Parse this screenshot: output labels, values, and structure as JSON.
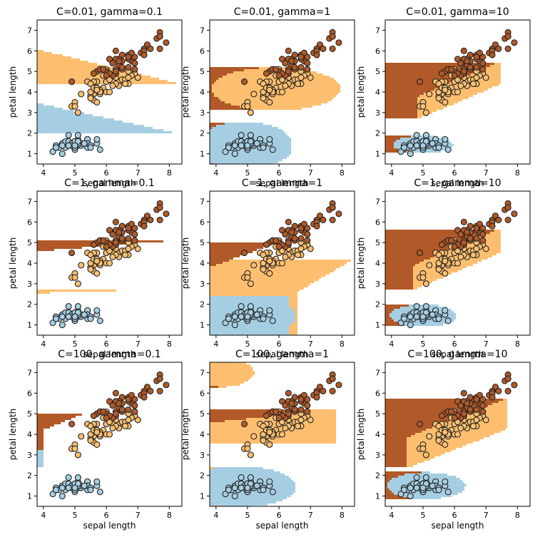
{
  "chart_data": {
    "type": "scatter",
    "description_of_regions": "SVM RBF decision regions (three classes) over sepal length vs petal length",
    "xlabel": "sepal length",
    "ylabel": "petal length",
    "xlim": [
      3.8,
      8.4
    ],
    "ylim": [
      0.5,
      7.5
    ],
    "xticks": [
      4,
      5,
      6,
      7,
      8
    ],
    "yticks": [
      1,
      2,
      3,
      4,
      5,
      6,
      7
    ],
    "colors": {
      "class0": "#a6cee3",
      "class1": "#fdbf6f",
      "class2": "#b15928",
      "edge": "#222222"
    },
    "panels": [
      {
        "title": "C=0.01, gamma=0.1",
        "C": 0.01,
        "gamma": 0.1
      },
      {
        "title": "C=0.01, gamma=1",
        "C": 0.01,
        "gamma": 1
      },
      {
        "title": "C=0.01, gamma=10",
        "C": 0.01,
        "gamma": 10
      },
      {
        "title": "C=1, gamma=0.1",
        "C": 1,
        "gamma": 0.1
      },
      {
        "title": "C=1, gamma=1",
        "C": 1,
        "gamma": 1
      },
      {
        "title": "C=1, gamma=10",
        "C": 1,
        "gamma": 10
      },
      {
        "title": "C=100, gamma=0.1",
        "C": 100,
        "gamma": 0.1
      },
      {
        "title": "C=100, gamma=1",
        "C": 100,
        "gamma": 1
      },
      {
        "title": "C=100, gamma=10",
        "C": 100,
        "gamma": 10
      }
    ],
    "points": {
      "setosa": [
        [
          5.1,
          1.4
        ],
        [
          4.9,
          1.4
        ],
        [
          4.7,
          1.3
        ],
        [
          4.6,
          1.5
        ],
        [
          5.0,
          1.4
        ],
        [
          5.4,
          1.7
        ],
        [
          4.6,
          1.4
        ],
        [
          5.0,
          1.5
        ],
        [
          4.4,
          1.4
        ],
        [
          4.9,
          1.5
        ],
        [
          5.4,
          1.5
        ],
        [
          4.8,
          1.6
        ],
        [
          4.8,
          1.4
        ],
        [
          4.3,
          1.1
        ],
        [
          5.8,
          1.2
        ],
        [
          5.7,
          1.5
        ],
        [
          5.4,
          1.3
        ],
        [
          5.1,
          1.4
        ],
        [
          5.7,
          1.7
        ],
        [
          5.1,
          1.5
        ],
        [
          5.4,
          1.7
        ],
        [
          5.1,
          1.5
        ],
        [
          4.6,
          1.0
        ],
        [
          5.1,
          1.7
        ],
        [
          4.8,
          1.9
        ],
        [
          5.0,
          1.6
        ],
        [
          5.0,
          1.6
        ],
        [
          5.2,
          1.5
        ],
        [
          5.2,
          1.4
        ],
        [
          4.7,
          1.6
        ],
        [
          4.8,
          1.6
        ],
        [
          5.4,
          1.5
        ],
        [
          5.2,
          1.5
        ],
        [
          5.5,
          1.4
        ],
        [
          4.9,
          1.5
        ],
        [
          5.0,
          1.2
        ],
        [
          5.5,
          1.3
        ],
        [
          4.9,
          1.4
        ],
        [
          4.4,
          1.3
        ],
        [
          5.1,
          1.5
        ],
        [
          5.0,
          1.3
        ],
        [
          4.5,
          1.3
        ],
        [
          4.4,
          1.3
        ],
        [
          5.0,
          1.6
        ],
        [
          5.1,
          1.9
        ],
        [
          4.8,
          1.4
        ],
        [
          5.1,
          1.6
        ],
        [
          4.6,
          1.4
        ],
        [
          5.3,
          1.5
        ],
        [
          5.0,
          1.4
        ]
      ],
      "versicolor": [
        [
          7.0,
          4.7
        ],
        [
          6.4,
          4.5
        ],
        [
          6.9,
          4.9
        ],
        [
          5.5,
          4.0
        ],
        [
          6.5,
          4.6
        ],
        [
          5.7,
          4.5
        ],
        [
          6.3,
          4.7
        ],
        [
          4.9,
          3.3
        ],
        [
          6.6,
          4.6
        ],
        [
          5.2,
          3.9
        ],
        [
          5.0,
          3.5
        ],
        [
          5.9,
          4.2
        ],
        [
          6.0,
          4.0
        ],
        [
          6.1,
          4.7
        ],
        [
          5.6,
          3.6
        ],
        [
          6.7,
          4.4
        ],
        [
          5.6,
          4.5
        ],
        [
          5.8,
          4.1
        ],
        [
          6.2,
          4.5
        ],
        [
          5.6,
          3.9
        ],
        [
          5.9,
          4.8
        ],
        [
          6.1,
          4.0
        ],
        [
          6.3,
          4.9
        ],
        [
          6.1,
          4.7
        ],
        [
          6.4,
          4.3
        ],
        [
          6.6,
          4.4
        ],
        [
          6.8,
          4.8
        ],
        [
          6.7,
          5.0
        ],
        [
          6.0,
          4.5
        ],
        [
          5.7,
          3.5
        ],
        [
          5.5,
          3.8
        ],
        [
          5.5,
          3.7
        ],
        [
          5.8,
          3.9
        ],
        [
          6.0,
          5.1
        ],
        [
          5.4,
          4.5
        ],
        [
          6.0,
          4.5
        ],
        [
          6.7,
          4.7
        ],
        [
          6.3,
          4.4
        ],
        [
          5.6,
          4.1
        ],
        [
          5.5,
          4.0
        ],
        [
          5.5,
          4.4
        ],
        [
          6.1,
          4.6
        ],
        [
          5.8,
          4.0
        ],
        [
          5.0,
          3.3
        ],
        [
          5.6,
          4.2
        ],
        [
          5.7,
          4.2
        ],
        [
          5.7,
          4.2
        ],
        [
          6.2,
          4.3
        ],
        [
          5.1,
          3.0
        ],
        [
          5.7,
          4.1
        ]
      ],
      "virginica": [
        [
          6.3,
          6.0
        ],
        [
          5.8,
          5.1
        ],
        [
          7.1,
          5.9
        ],
        [
          6.3,
          5.6
        ],
        [
          6.5,
          5.8
        ],
        [
          7.6,
          6.6
        ],
        [
          4.9,
          4.5
        ],
        [
          7.3,
          6.3
        ],
        [
          6.7,
          5.8
        ],
        [
          7.2,
          6.1
        ],
        [
          6.5,
          5.1
        ],
        [
          6.4,
          5.3
        ],
        [
          6.8,
          5.5
        ],
        [
          5.7,
          5.0
        ],
        [
          5.8,
          5.1
        ],
        [
          6.4,
          5.3
        ],
        [
          6.5,
          5.5
        ],
        [
          7.7,
          6.7
        ],
        [
          7.7,
          6.9
        ],
        [
          6.0,
          5.0
        ],
        [
          6.9,
          5.7
        ],
        [
          5.6,
          4.9
        ],
        [
          7.7,
          6.7
        ],
        [
          6.3,
          4.9
        ],
        [
          6.7,
          5.7
        ],
        [
          7.2,
          6.0
        ],
        [
          6.2,
          4.8
        ],
        [
          6.1,
          4.9
        ],
        [
          6.4,
          5.6
        ],
        [
          7.2,
          5.8
        ],
        [
          7.4,
          6.1
        ],
        [
          7.9,
          6.4
        ],
        [
          6.4,
          5.6
        ],
        [
          6.3,
          5.1
        ],
        [
          6.1,
          5.6
        ],
        [
          7.7,
          6.1
        ],
        [
          6.3,
          5.6
        ],
        [
          6.4,
          5.5
        ],
        [
          6.0,
          4.8
        ],
        [
          6.9,
          5.4
        ],
        [
          6.7,
          5.6
        ],
        [
          6.9,
          5.1
        ],
        [
          5.8,
          5.1
        ],
        [
          6.8,
          5.9
        ],
        [
          6.7,
          5.7
        ],
        [
          6.7,
          5.2
        ],
        [
          6.3,
          5.0
        ],
        [
          6.5,
          5.2
        ],
        [
          6.2,
          5.4
        ],
        [
          5.9,
          5.1
        ]
      ]
    }
  }
}
